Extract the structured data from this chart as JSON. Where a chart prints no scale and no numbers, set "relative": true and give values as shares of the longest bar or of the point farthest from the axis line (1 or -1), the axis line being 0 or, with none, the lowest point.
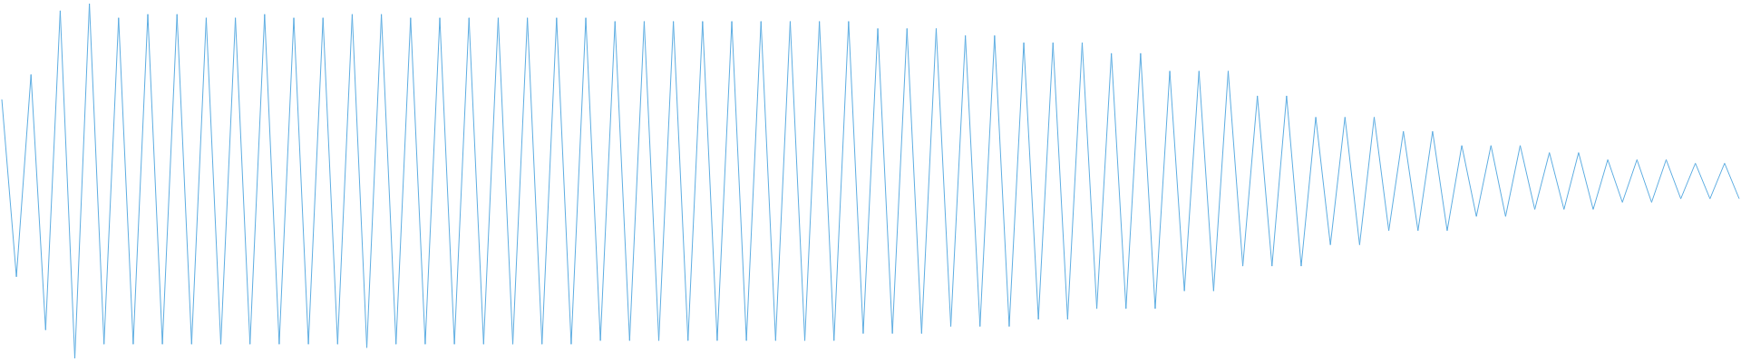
{
  "chart_data": {
    "type": "line",
    "relative": true,
    "categories": [
      null,
      null,
      null,
      null,
      null,
      null,
      null,
      null,
      null,
      null,
      null,
      null,
      null,
      null,
      null,
      null,
      null,
      null,
      null,
      null,
      null,
      null,
      null,
      null,
      null,
      null,
      null,
      null,
      null,
      null,
      null,
      null,
      null,
      null,
      null,
      null,
      null,
      null,
      null,
      null,
      null,
      null,
      null,
      null,
      null,
      null,
      null,
      null,
      null,
      null,
      null,
      null,
      null,
      null,
      null,
      null,
      null,
      null,
      null,
      null,
      null,
      null,
      null,
      null,
      null,
      null,
      null,
      null,
      null,
      null,
      null,
      null,
      null,
      null,
      null,
      null,
      null,
      null,
      null,
      null,
      null,
      null,
      null,
      null,
      null,
      null,
      null,
      null,
      null,
      null,
      null,
      null,
      null,
      null,
      null,
      null,
      null,
      null,
      null,
      null,
      null,
      null,
      null,
      null,
      null,
      null,
      null,
      null,
      null,
      null,
      null,
      null,
      null,
      null,
      null,
      null,
      null,
      null,
      null,
      null
    ],
    "series": [
      {
        "color": "#5dade2",
        "values": [
          0.73,
          0.23,
          0.8,
          0.08,
          0.98,
          0,
          1,
          0.04,
          0.96,
          0.04,
          0.97,
          0.04,
          0.97,
          0.04,
          0.96,
          0.04,
          0.96,
          0.04,
          0.97,
          0.04,
          0.96,
          0.04,
          0.96,
          0.04,
          0.97,
          0.03,
          0.97,
          0.04,
          0.96,
          0.04,
          0.96,
          0.04,
          0.96,
          0.04,
          0.96,
          0.04,
          0.96,
          0.04,
          0.96,
          0.04,
          0.96,
          0.05,
          0.95,
          0.05,
          0.95,
          0.05,
          0.95,
          0.05,
          0.95,
          0.05,
          0.95,
          0.05,
          0.95,
          0.05,
          0.95,
          0.05,
          0.95,
          0.05,
          0.95,
          0.07,
          0.93,
          0.07,
          0.93,
          0.07,
          0.93,
          0.09,
          0.91,
          0.09,
          0.91,
          0.09,
          0.89,
          0.11,
          0.89,
          0.11,
          0.89,
          0.14,
          0.86,
          0.14,
          0.86,
          0.14,
          0.81,
          0.19,
          0.81,
          0.19,
          0.81,
          0.26,
          0.74,
          0.26,
          0.74,
          0.26,
          0.68,
          0.32,
          0.68,
          0.32,
          0.68,
          0.36,
          0.64,
          0.36,
          0.64,
          0.36,
          0.6,
          0.4,
          0.6,
          0.4,
          0.6,
          0.42,
          0.58,
          0.42,
          0.58,
          0.42,
          0.56,
          0.44,
          0.56,
          0.44,
          0.56,
          0.45,
          0.55,
          0.45,
          0.55,
          0.45
        ]
      }
    ]
  }
}
